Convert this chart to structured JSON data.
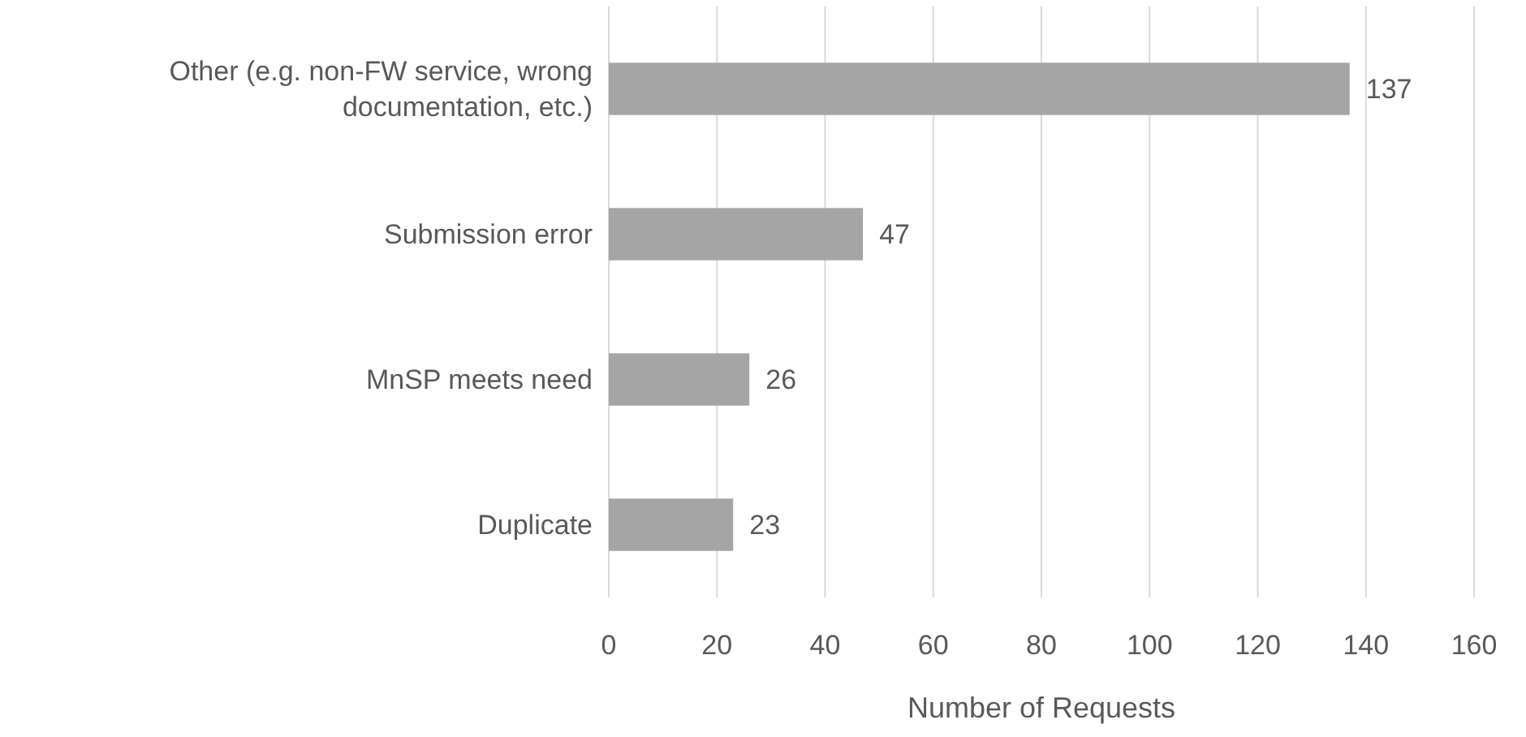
{
  "chart_data": {
    "type": "bar",
    "orientation": "horizontal",
    "xlabel": "Number of Requests",
    "categories": [
      "Other (e.g. non-FW service, wrong documentation, etc.)",
      "Submission error",
      "MnSP meets need",
      "Duplicate"
    ],
    "values": [
      137,
      47,
      26,
      23
    ],
    "color": "#a5a5a5",
    "xlim": [
      0,
      160
    ],
    "xticks": [
      0,
      20,
      40,
      60,
      80,
      100,
      120,
      140,
      160
    ],
    "grid": "x",
    "data_labels": true
  }
}
